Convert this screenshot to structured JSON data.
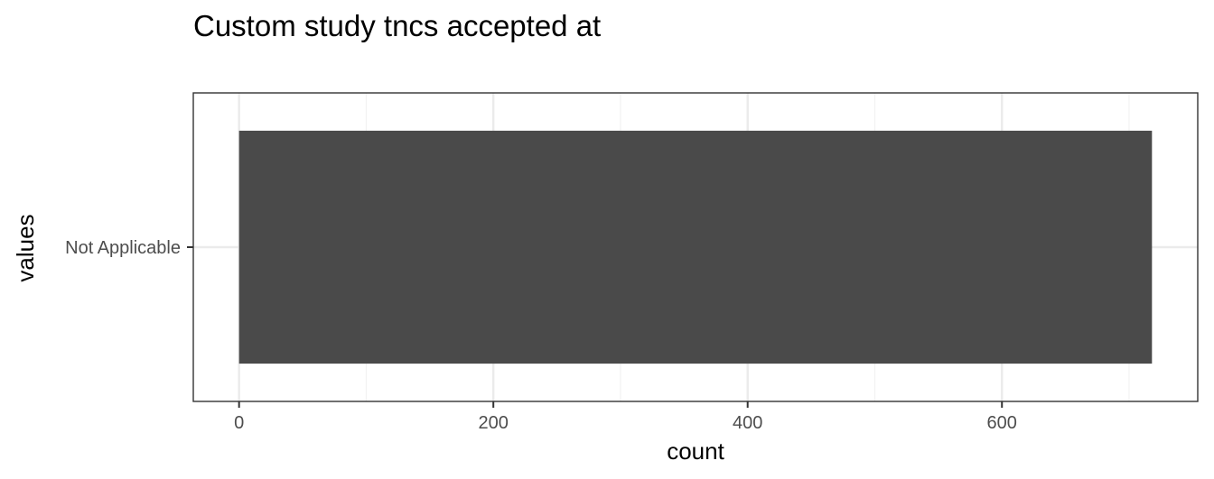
{
  "chart_data": {
    "type": "bar",
    "orientation": "horizontal",
    "title": "Custom study tncs accepted at",
    "xlabel": "count",
    "ylabel": "values",
    "categories": [
      "Not Applicable"
    ],
    "values": [
      718
    ],
    "xlim": [
      -36,
      754
    ],
    "xticks": [
      0,
      200,
      400,
      600
    ],
    "xtick_labels": [
      "0",
      "200",
      "400",
      "600"
    ],
    "grid": true,
    "legend": "none",
    "bar_color": "#4a4a4a"
  }
}
